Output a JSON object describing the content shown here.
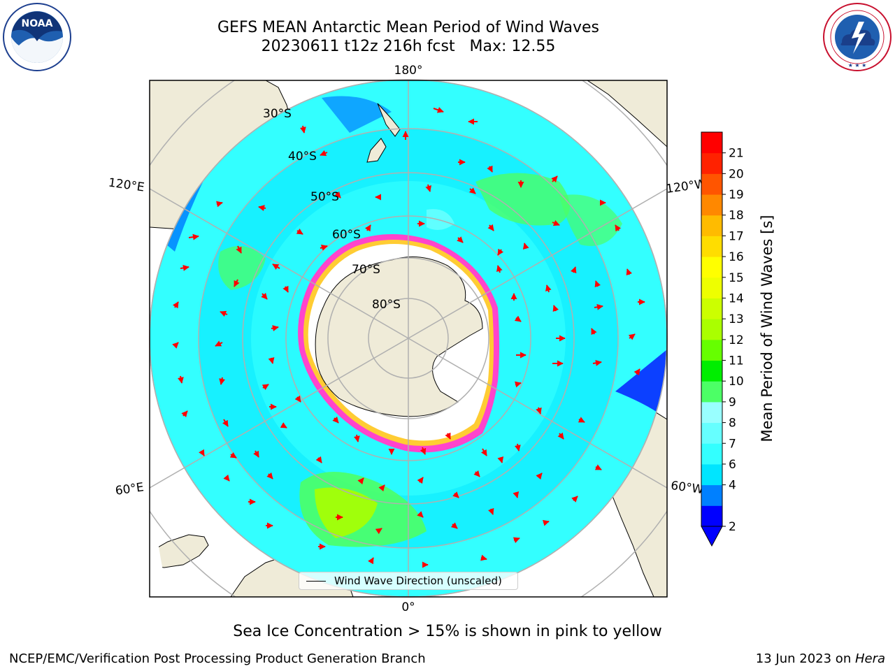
{
  "header": {
    "title_line1": "GEFS MEAN Antarctic Mean Period of Wind Waves",
    "title_line2": "20230611 t12z 216h fcst   Max: 12.55"
  },
  "logos": {
    "noaa_text": "NOAA",
    "noaa_ring_text": "NATIONAL OCEANIC AND ATMOSPHERIC ADMINISTRATION · U.S. DEPARTMENT OF COMMERCE",
    "nws_ring_text": "NATIONAL WEATHER SERVICE"
  },
  "map": {
    "lon_labels": {
      "top": "180°",
      "bottom": "0°",
      "left_upper": "120°E",
      "left_lower": "60°E",
      "right_upper": "120°W",
      "right_lower": "60°W"
    },
    "lat_labels": [
      "30°S",
      "40°S",
      "50°S",
      "60°S",
      "70°S",
      "80°S"
    ],
    "colors": {
      "land": "#efebd8",
      "ocean_mid": "#33ffff",
      "ocean_light": "#66ffff",
      "ocean_deep": "#00ccff",
      "ice": "#ffffff",
      "arrow": "#ff0000",
      "grid": "#b0b0b0"
    }
  },
  "legend": {
    "label": "Wind Wave Direction (unscaled)"
  },
  "colorbar": {
    "title": "Mean Period of Wind Waves [s]",
    "ticks": [
      "2",
      "4",
      "6",
      "7",
      "8",
      "9",
      "10",
      "11",
      "12",
      "13",
      "14",
      "15",
      "16",
      "17",
      "18",
      "19",
      "20",
      "21"
    ],
    "colors": [
      "#0000ff",
      "#0080ff",
      "#00e5ff",
      "#33ffff",
      "#66ffff",
      "#99ffff",
      "#4cff66",
      "#00ee00",
      "#66ff00",
      "#aaff00",
      "#ccff00",
      "#eeff00",
      "#ffff00",
      "#ffdd00",
      "#ffbb00",
      "#ff8800",
      "#ff5500",
      "#ff2200",
      "#ff0000"
    ]
  },
  "caption": "Sea Ice Concentration > 15% is shown in pink to yellow",
  "footer": {
    "left": "NCEP/EMC/Verification Post Processing Product Generation Branch",
    "right_date": "13 Jun 2023 on ",
    "right_host": "Hera"
  }
}
